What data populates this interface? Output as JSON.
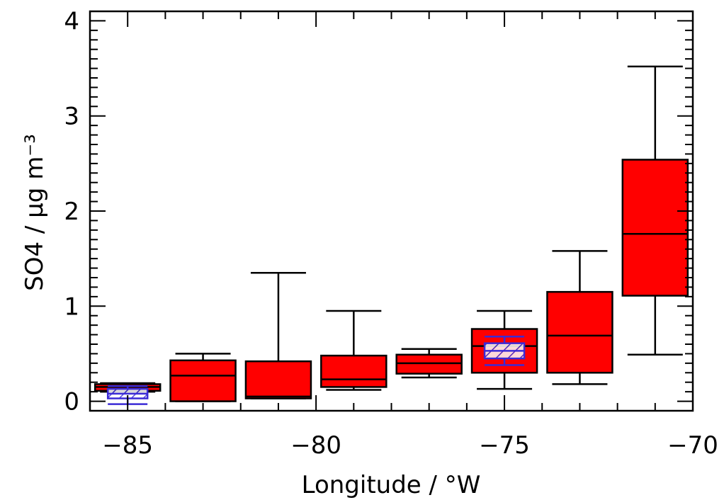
{
  "chart_data": {
    "type": "box",
    "xlabel": "Longitude / °W",
    "ylabel": "SO4 / µg m⁻³",
    "xlim": [
      -86,
      -70
    ],
    "ylim": [
      -0.1,
      4.1
    ],
    "xticks": [
      -85,
      -80,
      -75,
      -70
    ],
    "xtick_labels": [
      "−85",
      "−80",
      "−75",
      "−70"
    ],
    "yticks": [
      0,
      1,
      2,
      3,
      4
    ],
    "ytick_labels": [
      "0",
      "1",
      "2",
      "3",
      "4"
    ],
    "colors": {
      "box_fill": "#ff0000",
      "obs_box": "#3b2bd6",
      "line": "#000000"
    },
    "series": [
      {
        "style": "filled-red",
        "boxes": [
          {
            "x": -85.0,
            "min": 0.1,
            "q1": 0.11,
            "median": 0.15,
            "q3": 0.18,
            "max": 0.19
          },
          {
            "x": -83.0,
            "min": 0.0,
            "q1": 0.0,
            "median": 0.27,
            "q3": 0.43,
            "max": 0.5
          },
          {
            "x": -81.0,
            "min": 0.03,
            "q1": 0.03,
            "median": 0.05,
            "q3": 0.42,
            "max": 1.35
          },
          {
            "x": -79.0,
            "min": 0.12,
            "q1": 0.15,
            "median": 0.23,
            "q3": 0.48,
            "max": 0.95
          },
          {
            "x": -77.0,
            "min": 0.25,
            "q1": 0.29,
            "median": 0.4,
            "q3": 0.49,
            "max": 0.55
          },
          {
            "x": -75.0,
            "min": 0.13,
            "q1": 0.3,
            "median": 0.58,
            "q3": 0.76,
            "max": 0.95
          },
          {
            "x": -73.0,
            "min": 0.18,
            "q1": 0.3,
            "median": 0.69,
            "q3": 1.15,
            "max": 1.58
          },
          {
            "x": -71.0,
            "min": 0.49,
            "q1": 1.11,
            "median": 1.76,
            "q3": 2.54,
            "max": 3.52
          }
        ]
      },
      {
        "style": "hatched-blue",
        "boxes": [
          {
            "x": -85.0,
            "min": -0.03,
            "q1": 0.03,
            "median": 0.08,
            "q3": 0.13,
            "max": 0.16
          },
          {
            "x": -75.0,
            "min": 0.38,
            "q1": 0.45,
            "median": 0.53,
            "q3": 0.61,
            "max": 0.68
          }
        ]
      }
    ]
  }
}
